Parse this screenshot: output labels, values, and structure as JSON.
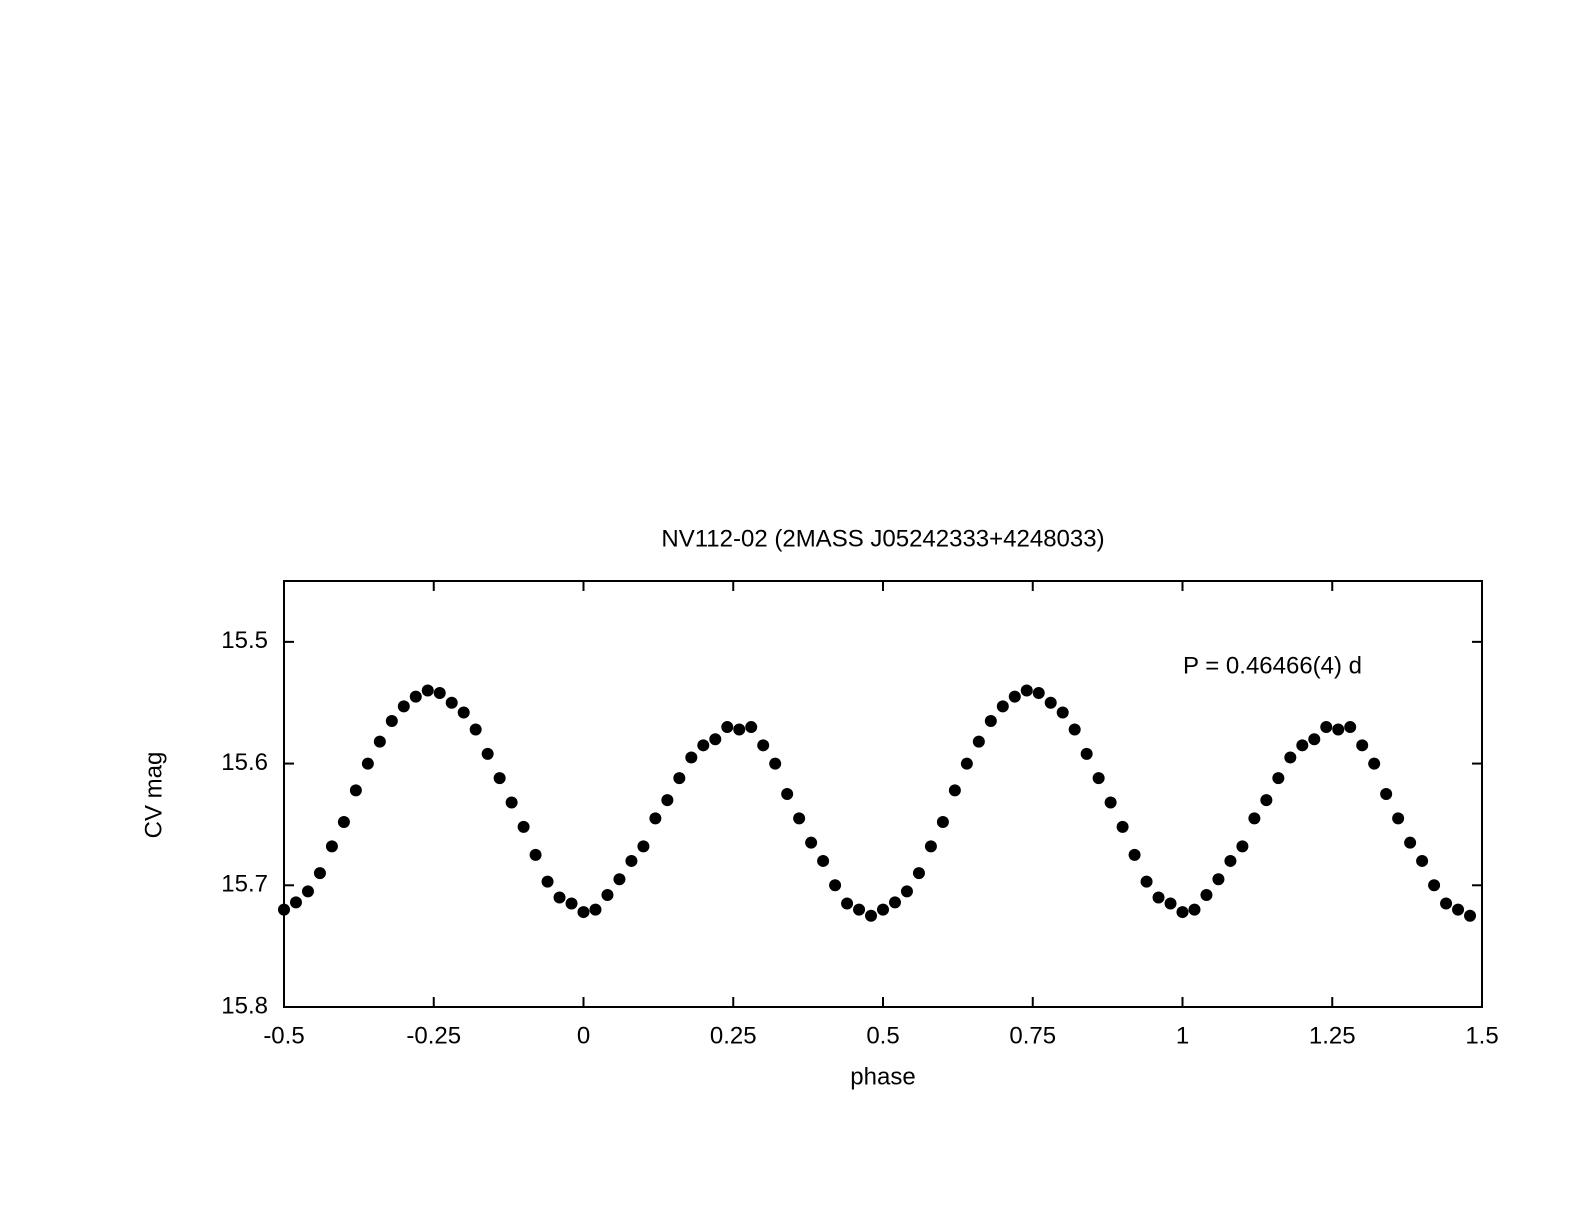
{
  "chart_data": {
    "type": "scatter",
    "title": "NV112-02 (2MASS J05242333+4248033)",
    "x_label": "phase",
    "y_label": "CV mag",
    "annotation": "P = 0.46466(4) d",
    "color": "#000000",
    "xlim": [
      -0.5,
      1.5
    ],
    "xticks": [
      -0.5,
      -0.25,
      0,
      0.25,
      0.5,
      0.75,
      1,
      1.25,
      1.5
    ],
    "ylim": [
      15.8,
      15.45
    ],
    "yticks": [
      15.5,
      15.6,
      15.7,
      15.8
    ],
    "x": [
      -0.5,
      -0.48,
      -0.46,
      -0.44,
      -0.42,
      -0.4,
      -0.38,
      -0.36,
      -0.34,
      -0.32,
      -0.3,
      -0.28,
      -0.26,
      -0.24,
      -0.22,
      -0.2,
      -0.18,
      -0.16,
      -0.14,
      -0.12,
      -0.1,
      -0.08,
      -0.06,
      -0.04,
      -0.02,
      0,
      0.02,
      0.04,
      0.06,
      0.08,
      0.1,
      0.12,
      0.14,
      0.16,
      0.18,
      0.2,
      0.22,
      0.24,
      0.26,
      0.28,
      0.3,
      0.32,
      0.34,
      0.36,
      0.38,
      0.4,
      0.42,
      0.44,
      0.46,
      0.48,
      0.5,
      0.52,
      0.54,
      0.56,
      0.58,
      0.6,
      0.62,
      0.64,
      0.66,
      0.68,
      0.7,
      0.72,
      0.74,
      0.76,
      0.78,
      0.8,
      0.82,
      0.84,
      0.86,
      0.88,
      0.9,
      0.92,
      0.94,
      0.96,
      0.98,
      1,
      1.02,
      1.04,
      1.06,
      1.08,
      1.1,
      1.12,
      1.14,
      1.16,
      1.18,
      1.2,
      1.22,
      1.24,
      1.26,
      1.28,
      1.3,
      1.32,
      1.34,
      1.36,
      1.38,
      1.4,
      1.42,
      1.44,
      1.46,
      1.48
    ],
    "values": [
      15.72,
      15.714,
      15.705,
      15.69,
      15.668,
      15.648,
      15.622,
      15.6,
      15.582,
      15.565,
      15.553,
      15.545,
      15.54,
      15.542,
      15.55,
      15.558,
      15.572,
      15.592,
      15.612,
      15.632,
      15.652,
      15.675,
      15.697,
      15.71,
      15.715,
      15.722,
      15.72,
      15.708,
      15.695,
      15.68,
      15.668,
      15.645,
      15.63,
      15.612,
      15.595,
      15.585,
      15.58,
      15.57,
      15.572,
      15.57,
      15.585,
      15.6,
      15.625,
      15.645,
      15.665,
      15.68,
      15.7,
      15.715,
      15.72,
      15.725,
      15.72,
      15.714,
      15.705,
      15.69,
      15.668,
      15.648,
      15.622,
      15.6,
      15.582,
      15.565,
      15.553,
      15.545,
      15.54,
      15.542,
      15.55,
      15.558,
      15.572,
      15.592,
      15.612,
      15.632,
      15.652,
      15.675,
      15.697,
      15.71,
      15.715,
      15.722,
      15.72,
      15.708,
      15.695,
      15.68,
      15.668,
      15.645,
      15.63,
      15.612,
      15.595,
      15.585,
      15.58,
      15.57,
      15.572,
      15.57,
      15.585,
      15.6,
      15.625,
      15.645,
      15.665,
      15.68,
      15.7,
      15.715,
      15.72,
      15.725
    ]
  }
}
